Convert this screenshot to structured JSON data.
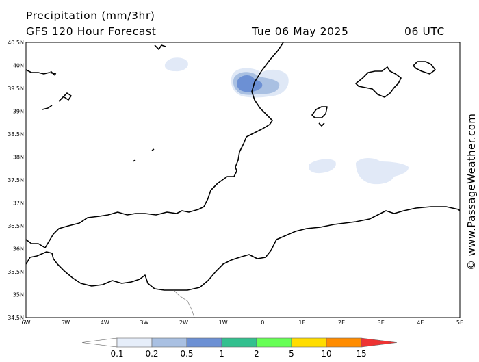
{
  "title": {
    "line1": "Precipitation (mm/3hr)",
    "line2": "GFS 120 Hour Forecast",
    "date": "Tue 06 May 2025",
    "time": "06 UTC"
  },
  "watermark": "© www.PassageWeather.com",
  "map": {
    "lat_range": [
      34.5,
      40.5
    ],
    "lon_range": [
      -6,
      5
    ],
    "lat_labels": [
      "40.5N",
      "40N",
      "39.5N",
      "39N",
      "38.5N",
      "38N",
      "37.5N",
      "37N",
      "36.5N",
      "36N",
      "35.5N",
      "35N",
      "34.5N"
    ],
    "lon_labels": [
      "6W",
      "5W",
      "4W",
      "3W",
      "2W",
      "1W",
      "0",
      "1E",
      "2E",
      "3E",
      "4E",
      "5E"
    ]
  },
  "colorbar": {
    "labels": [
      "0.1",
      "0.2",
      "0.5",
      "1",
      "2",
      "5",
      "10",
      "15"
    ],
    "colors": [
      "#ffffff",
      "#e6eefa",
      "#a9c0e2",
      "#6c90d4",
      "#33c08f",
      "#66ff55",
      "#ffdd00",
      "#ff8c00",
      "#ee3333"
    ]
  }
}
